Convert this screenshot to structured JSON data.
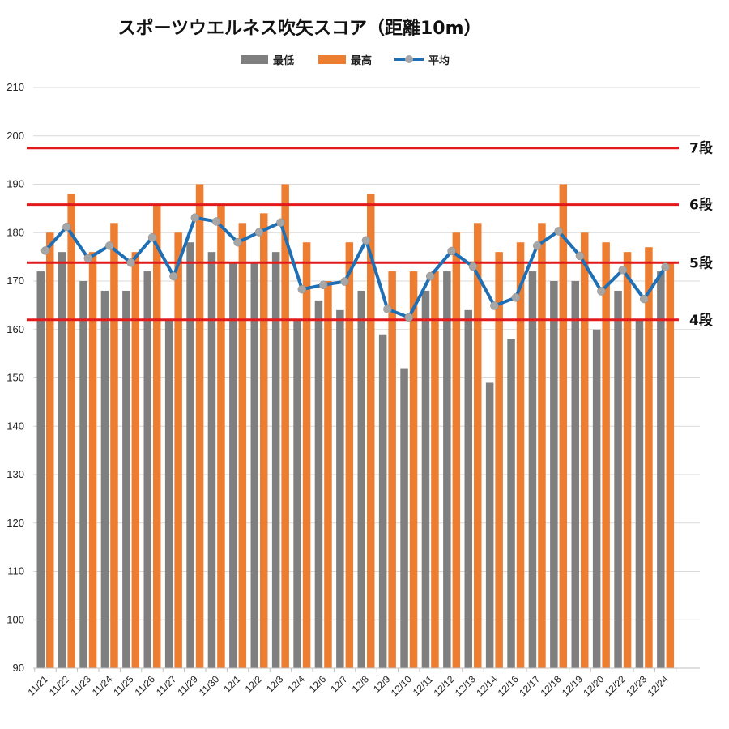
{
  "chart_data": {
    "type": "bar",
    "title": "スポーツウエルネス吹矢スコア（距離10m）",
    "categories": [
      "11/21",
      "11/22",
      "11/23",
      "11/24",
      "11/25",
      "11/26",
      "11/27",
      "11/29",
      "11/30",
      "12/1",
      "12/2",
      "12/3",
      "12/4",
      "12/6",
      "12/7",
      "12/8",
      "12/9",
      "12/10",
      "12/11",
      "12/12",
      "12/13",
      "12/14",
      "12/16",
      "12/17",
      "12/18",
      "12/19",
      "12/20",
      "12/22",
      "12/23",
      "12/24"
    ],
    "series": [
      {
        "name": "最低",
        "type": "bar",
        "color": "#7f7f7f",
        "values": [
          172,
          176,
          170,
          168,
          168,
          172,
          162,
          178,
          176,
          174,
          174,
          176,
          162,
          166,
          164,
          168,
          159,
          152,
          168,
          172,
          164,
          149,
          158,
          172,
          170,
          170,
          160,
          168,
          162,
          172
        ]
      },
      {
        "name": "最高",
        "type": "bar",
        "color": "#ed7d31",
        "values": [
          180,
          188,
          176,
          182,
          176,
          186,
          180,
          190,
          186,
          182,
          184,
          190,
          178,
          170,
          178,
          188,
          172,
          172,
          172,
          180,
          182,
          176,
          178,
          182,
          190,
          180,
          178,
          176,
          177,
          174
        ]
      },
      {
        "name": "平均",
        "type": "line",
        "color": "#1f6fb5",
        "marker_color": "#a6a6a6",
        "values": [
          176.3,
          181.2,
          174.7,
          177.3,
          173.8,
          179.0,
          171.0,
          183.1,
          182.3,
          178.0,
          180.1,
          182.1,
          168.3,
          169.2,
          169.9,
          178.4,
          164.2,
          162.5,
          171.0,
          176.2,
          173.0,
          164.9,
          166.6,
          177.3,
          180.3,
          175.2,
          167.9,
          172.3,
          166.3,
          172.9
        ]
      }
    ],
    "yaxis": {
      "min": 90,
      "max": 210,
      "step": 10
    },
    "reference_lines": [
      {
        "label": "7段",
        "value": 197.5,
        "color": "#e31a1c"
      },
      {
        "label": "6段",
        "value": 185.8,
        "color": "#e31a1c"
      },
      {
        "label": "5段",
        "value": 173.8,
        "color": "#e31a1c"
      },
      {
        "label": "4段",
        "value": 162.0,
        "color": "#e31a1c"
      }
    ],
    "grid": true,
    "legend": "top"
  }
}
